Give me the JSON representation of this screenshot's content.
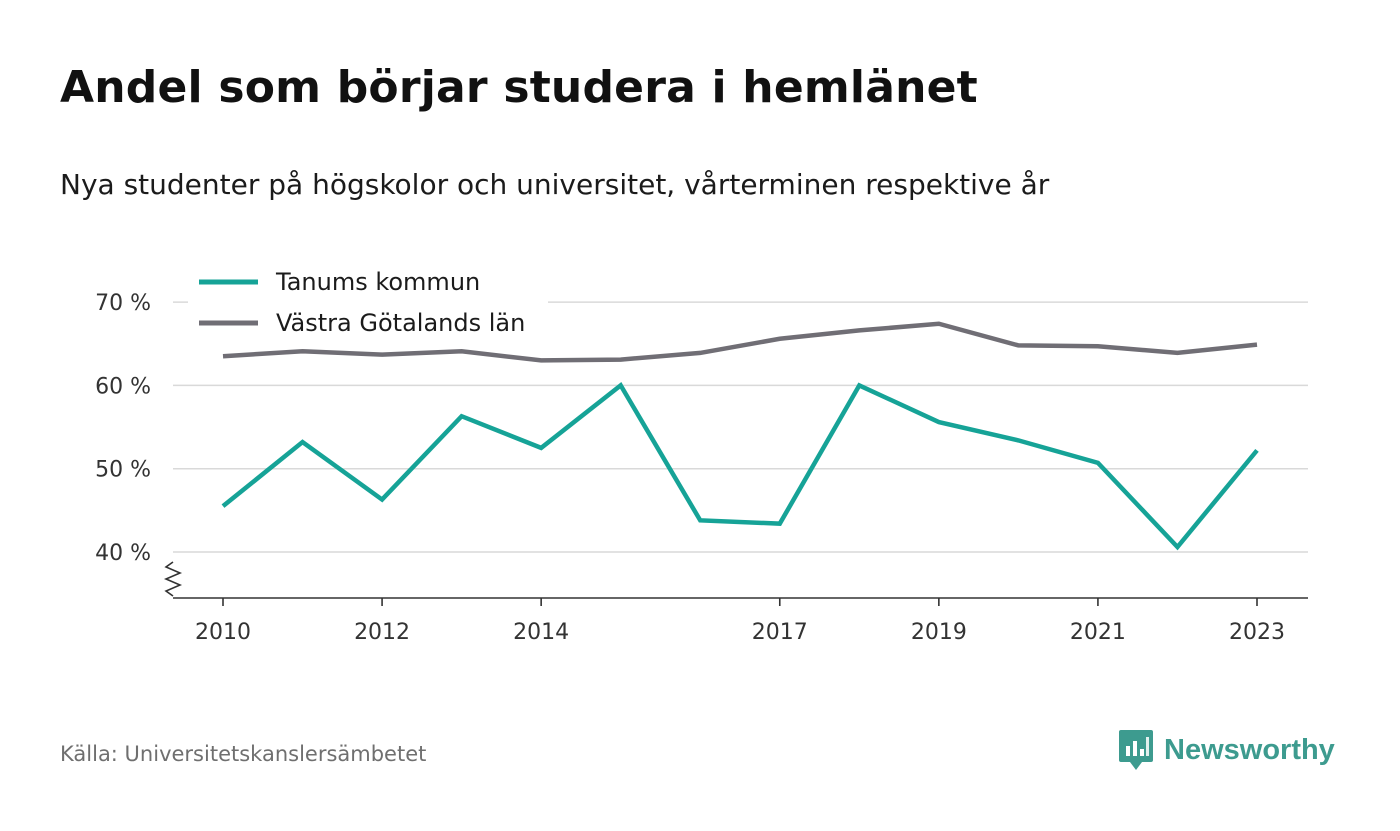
{
  "title": "Andel som börjar studera i hemlänet",
  "subtitle": "Nya studenter på högskolor och universitet, vårterminen respektive år",
  "source": "Källa: Universitetskanslersämbetet",
  "brand": {
    "name": "Newsworthy",
    "icon": "newsworthy-logo-icon",
    "color": "#3d9b8f"
  },
  "chart_data": {
    "type": "line",
    "x": [
      2010,
      2011,
      2012,
      2013,
      2014,
      2015,
      2016,
      2017,
      2018,
      2019,
      2020,
      2021,
      2022,
      2023
    ],
    "x_tick_labels": [
      "2010",
      "2012",
      "2014",
      "2017",
      "2019",
      "2021",
      "2023"
    ],
    "x_tick_values": [
      2010,
      2012,
      2014,
      2017,
      2019,
      2021,
      2023
    ],
    "y_tick_labels": [
      "40 %",
      "50 %",
      "60 %",
      "70 %"
    ],
    "y_tick_values": [
      40,
      50,
      60,
      70
    ],
    "ylim": [
      35,
      70
    ],
    "y_axis_break": true,
    "grid": true,
    "legend_position": "top-left",
    "series": [
      {
        "name": "Tanums kommun",
        "color": "#16a397",
        "values": [
          45.5,
          53.2,
          46.3,
          56.3,
          52.5,
          60.0,
          43.8,
          43.4,
          60.0,
          55.6,
          53.4,
          50.7,
          40.6,
          52.2
        ]
      },
      {
        "name": "Västra Götalands län",
        "color": "#706e75",
        "values": [
          63.5,
          64.1,
          63.7,
          64.1,
          63.0,
          63.1,
          63.9,
          65.6,
          66.6,
          67.4,
          64.8,
          64.7,
          63.9,
          64.9
        ]
      }
    ]
  }
}
